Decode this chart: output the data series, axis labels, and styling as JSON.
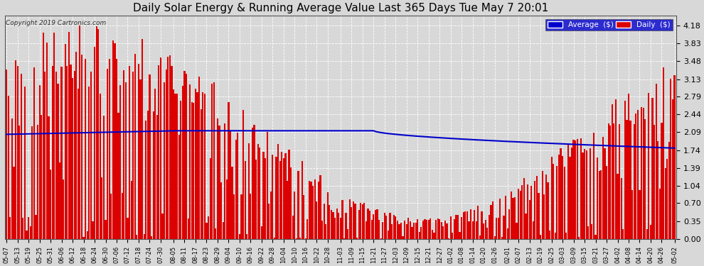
{
  "title": "Daily Solar Energy & Running Average Value Last 365 Days Tue May 7 20:01",
  "copyright": "Copyright 2019 Cartronics.com",
  "legend_avg": "Average  ($)",
  "legend_daily": "Daily  ($)",
  "bar_color": "#dd0000",
  "bar_edge_color": "#dd0000",
  "avg_line_color": "#0000cc",
  "background_color": "#d8d8d8",
  "plot_bg_color": "#d8d8d8",
  "grid_color": "#ffffff",
  "yticks": [
    0.0,
    0.35,
    0.7,
    1.04,
    1.39,
    1.74,
    2.09,
    2.44,
    2.79,
    3.13,
    3.48,
    3.83,
    4.18
  ],
  "ylim": [
    0.0,
    4.38
  ],
  "xlabel_fontsize": 6.0,
  "title_fontsize": 11,
  "tick_fontsize": 8,
  "n_days": 365,
  "x_labels": [
    "05-07",
    "05-13",
    "05-19",
    "05-25",
    "05-31",
    "06-06",
    "06-12",
    "06-18",
    "06-24",
    "06-30",
    "07-06",
    "07-12",
    "07-18",
    "07-24",
    "07-30",
    "08-05",
    "08-11",
    "08-17",
    "08-23",
    "08-29",
    "09-04",
    "09-10",
    "09-16",
    "09-22",
    "09-28",
    "10-04",
    "10-10",
    "10-16",
    "10-22",
    "10-28",
    "11-03",
    "11-09",
    "11-15",
    "11-21",
    "11-27",
    "12-03",
    "12-09",
    "12-15",
    "12-21",
    "12-27",
    "01-02",
    "01-08",
    "01-14",
    "01-20",
    "01-26",
    "02-01",
    "02-07",
    "02-13",
    "02-19",
    "02-25",
    "03-03",
    "03-09",
    "03-15",
    "03-21",
    "03-27",
    "04-02",
    "04-08",
    "04-14",
    "04-20",
    "04-26",
    "05-02"
  ]
}
